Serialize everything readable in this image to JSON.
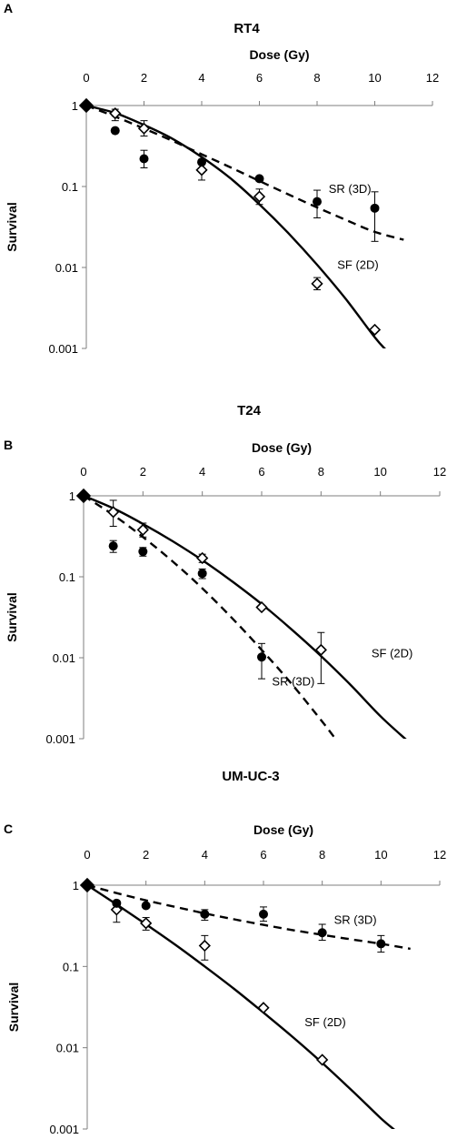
{
  "chart_data": [
    {
      "type": "scatter",
      "panel": "A",
      "title": "RT4",
      "xlabel": "Dose (Gy)",
      "ylabel": "Survival",
      "xlim": [
        0,
        12
      ],
      "ylim": [
        0.001,
        1
      ],
      "yscale": "log",
      "x_ticks": [
        "0",
        "2",
        "4",
        "6",
        "8",
        "10",
        "12"
      ],
      "y_ticks": [
        "1",
        "0.1",
        "0.01",
        "0.001"
      ],
      "x_axis_position": "top",
      "grid": false,
      "series": [
        {
          "name": "SF (2D)",
          "marker": "open-diamond",
          "points": [
            {
              "x": 0,
              "y": 1
            },
            {
              "x": 1,
              "y": 0.8,
              "err_low": 0.65,
              "err_high": 0.9
            },
            {
              "x": 2,
              "y": 0.52,
              "err_low": 0.42,
              "err_high": 0.65
            },
            {
              "x": 4,
              "y": 0.16,
              "err_low": 0.12,
              "err_high": 0.21
            },
            {
              "x": 6,
              "y": 0.075,
              "err_low": 0.06,
              "err_high": 0.093
            },
            {
              "x": 8,
              "y": 0.0063,
              "err_low": 0.0053,
              "err_high": 0.0075
            },
            {
              "x": 10,
              "y": 0.0017
            }
          ],
          "fit": {
            "style": "solid",
            "curve": [
              [
                0,
                1
              ],
              [
                1,
                0.808
              ],
              [
                2,
                0.575
              ],
              [
                3,
                0.386
              ],
              [
                4,
                0.231
              ],
              [
                5,
                0.126
              ],
              [
                6,
                0.0603
              ],
              [
                7,
                0.0266
              ],
              [
                8,
                0.0108
              ],
              [
                9,
                0.00405
              ],
              [
                10,
                0.00137
              ],
              [
                10.4,
                0.00095
              ]
            ]
          }
        },
        {
          "name": "SR (3D)",
          "marker": "filled-circle",
          "points": [
            {
              "x": 1,
              "y": 0.49
            },
            {
              "x": 2,
              "y": 0.22,
              "err_low": 0.17,
              "err_high": 0.28
            },
            {
              "x": 4,
              "y": 0.2
            },
            {
              "x": 6,
              "y": 0.125
            },
            {
              "x": 8,
              "y": 0.065,
              "err_low": 0.041,
              "err_high": 0.09
            },
            {
              "x": 10,
              "y": 0.054,
              "err_low": 0.021,
              "err_high": 0.086
            }
          ],
          "fit": {
            "style": "dashed",
            "curve": [
              [
                0,
                1
              ],
              [
                1,
                0.73
              ],
              [
                2,
                0.52
              ],
              [
                3,
                0.365
              ],
              [
                4,
                0.25
              ],
              [
                5,
                0.172
              ],
              [
                6,
                0.117
              ],
              [
                7,
                0.08
              ],
              [
                8,
                0.0552
              ],
              [
                9,
                0.0386
              ],
              [
                10,
                0.0275
              ],
              [
                11,
                0.022
              ]
            ]
          }
        }
      ],
      "annotations": [
        {
          "text": "SR (3D)",
          "x": 8.4,
          "y": 0.095
        },
        {
          "text": "SF (2D)",
          "x": 8.7,
          "y": 0.011
        }
      ]
    },
    {
      "type": "scatter",
      "panel": "B",
      "title": "T24",
      "xlabel": "Dose (Gy)",
      "ylabel": "Survival",
      "xlim": [
        0,
        12
      ],
      "ylim": [
        0.001,
        1
      ],
      "yscale": "log",
      "x_ticks": [
        "0",
        "2",
        "4",
        "6",
        "8",
        "10",
        "12"
      ],
      "y_ticks": [
        "1",
        "0.1",
        "0.01",
        "0.001"
      ],
      "x_axis_position": "top",
      "grid": false,
      "series": [
        {
          "name": "SF (2D)",
          "marker": "open-diamond",
          "points": [
            {
              "x": 0,
              "y": 1
            },
            {
              "x": 1,
              "y": 0.63,
              "err_low": 0.42,
              "err_high": 0.88
            },
            {
              "x": 2,
              "y": 0.38,
              "err_low": 0.31,
              "err_high": 0.46
            },
            {
              "x": 4,
              "y": 0.17,
              "err_low": 0.15,
              "err_high": 0.19
            },
            {
              "x": 6,
              "y": 0.042
            },
            {
              "x": 8,
              "y": 0.0125,
              "err_low": 0.0048,
              "err_high": 0.0205
            }
          ],
          "fit": {
            "style": "solid",
            "curve": [
              [
                0,
                1
              ],
              [
                1,
                0.7
              ],
              [
                2,
                0.45
              ],
              [
                3,
                0.275
              ],
              [
                4,
                0.16
              ],
              [
                5,
                0.088
              ],
              [
                6,
                0.046
              ],
              [
                7,
                0.0225
              ],
              [
                8,
                0.0105
              ],
              [
                9,
                0.0046
              ],
              [
                10,
                0.0019
              ],
              [
                10.9,
                0.00095
              ]
            ]
          }
        },
        {
          "name": "SR (3D)",
          "marker": "filled-circle",
          "points": [
            {
              "x": 1,
              "y": 0.24,
              "err_low": 0.2,
              "err_high": 0.28
            },
            {
              "x": 2,
              "y": 0.205,
              "err_low": 0.18,
              "err_high": 0.23
            },
            {
              "x": 4,
              "y": 0.11,
              "err_low": 0.095,
              "err_high": 0.125
            },
            {
              "x": 6,
              "y": 0.0102,
              "err_low": 0.0055,
              "err_high": 0.015
            }
          ],
          "fit": {
            "style": "dashed",
            "curve": [
              [
                0,
                1
              ],
              [
                1,
                0.58
              ],
              [
                2,
                0.31
              ],
              [
                3,
                0.155
              ],
              [
                4,
                0.072
              ],
              [
                5,
                0.031
              ],
              [
                6,
                0.0125
              ],
              [
                7,
                0.0048
              ],
              [
                8,
                0.0017
              ],
              [
                8.5,
                0.00098
              ]
            ]
          }
        }
      ],
      "annotations": [
        {
          "text": "SF (2D)",
          "x": 9.7,
          "y": 0.0115
        },
        {
          "text": "SR (3D)",
          "x": 6.35,
          "y": 0.0052
        }
      ]
    },
    {
      "type": "scatter",
      "panel": "C",
      "title": "UM-UC-3",
      "xlabel": "Dose (Gy)",
      "ylabel": "Survival",
      "xlim": [
        0,
        12
      ],
      "ylim": [
        0.001,
        1
      ],
      "yscale": "log",
      "x_ticks": [
        "0",
        "2",
        "4",
        "6",
        "8",
        "10",
        "12"
      ],
      "y_ticks": [
        "1",
        "0.1",
        "0.01",
        "0.001"
      ],
      "x_axis_position": "top",
      "grid": false,
      "series": [
        {
          "name": "SF (2D)",
          "marker": "open-diamond",
          "points": [
            {
              "x": 0,
              "y": 1
            },
            {
              "x": 1,
              "y": 0.5,
              "err_low": 0.35,
              "err_high": 0.62
            },
            {
              "x": 2,
              "y": 0.34,
              "err_low": 0.28,
              "err_high": 0.4
            },
            {
              "x": 4,
              "y": 0.18,
              "err_low": 0.12,
              "err_high": 0.24
            },
            {
              "x": 6,
              "y": 0.031
            },
            {
              "x": 8,
              "y": 0.0071
            }
          ],
          "fit": {
            "style": "solid",
            "curve": [
              [
                0,
                1
              ],
              [
                1,
                0.58
              ],
              [
                2,
                0.33
              ],
              [
                3,
                0.185
              ],
              [
                4,
                0.1
              ],
              [
                5,
                0.053
              ],
              [
                6,
                0.027
              ],
              [
                7,
                0.0135
              ],
              [
                8,
                0.0065
              ],
              [
                9,
                0.003
              ],
              [
                10,
                0.00135
              ],
              [
                10.5,
                0.00095
              ]
            ]
          }
        },
        {
          "name": "SR (3D)",
          "marker": "filled-circle",
          "points": [
            {
              "x": 1,
              "y": 0.6
            },
            {
              "x": 2,
              "y": 0.56
            },
            {
              "x": 4,
              "y": 0.44,
              "err_low": 0.37,
              "err_high": 0.5
            },
            {
              "x": 6,
              "y": 0.44,
              "err_low": 0.36,
              "err_high": 0.54
            },
            {
              "x": 8,
              "y": 0.26,
              "err_low": 0.21,
              "err_high": 0.33
            },
            {
              "x": 10,
              "y": 0.19,
              "err_low": 0.15,
              "err_high": 0.24
            }
          ],
          "fit": {
            "style": "dashed",
            "curve": [
              [
                0,
                1
              ],
              [
                1,
                0.8
              ],
              [
                2,
                0.65
              ],
              [
                3,
                0.54
              ],
              [
                4,
                0.45
              ],
              [
                5,
                0.38
              ],
              [
                6,
                0.325
              ],
              [
                7,
                0.28
              ],
              [
                8,
                0.245
              ],
              [
                9,
                0.215
              ],
              [
                10,
                0.19
              ],
              [
                11,
                0.165
              ]
            ]
          }
        }
      ],
      "annotations": [
        {
          "text": "SR (3D)",
          "x": 8.4,
          "y": 0.38
        },
        {
          "text": "SF (2D)",
          "x": 7.4,
          "y": 0.021
        }
      ]
    }
  ]
}
